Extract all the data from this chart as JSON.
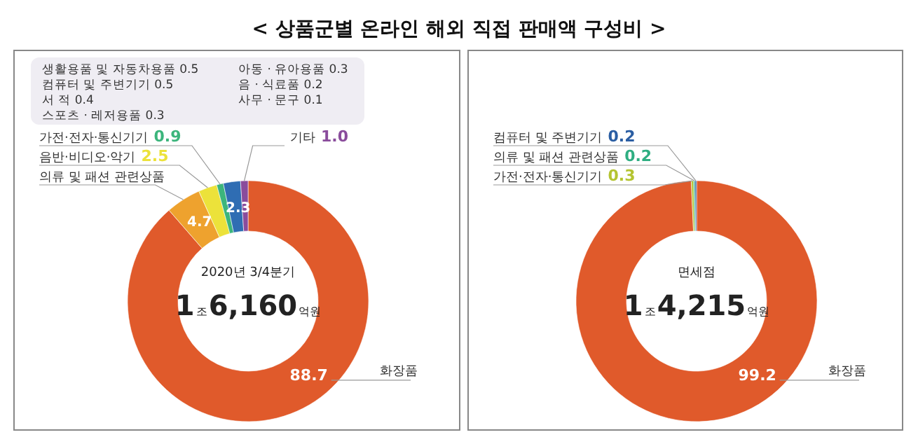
{
  "chart_data": [
    {
      "type": "donut",
      "title": "< 상품군별 온라인 해외 직접 판매액 구성비 >",
      "subtitle": "2020년 3/4분기",
      "categories": [
        "화장품",
        "의류 및 패션 관련상품",
        "음반·비디오·악기",
        "가전·전자·통신기기",
        null,
        "기타"
      ],
      "values": [
        88.7,
        4.7,
        2.5,
        0.9,
        2.3,
        1.0
      ],
      "colors": [
        "#e05a2b",
        "#eea22e",
        "#ece23a",
        "#3cb57c",
        "#2f6db3",
        "#8a4c9c"
      ],
      "value_labels": [
        "88.7",
        "4.7",
        "2.5",
        "0.9",
        "2.3",
        "1.0"
      ],
      "annotations": [
        "1조6,160억원",
        "생활용품 및 자동차용품 0.5",
        "컴퓨터 및 주변기기 0.5",
        "서 적 0.4",
        "스포츠 · 레저용품 0.3",
        "아동 · 유아용품 0.3",
        "음 · 식료품 0.2",
        "사무 · 문구 0.1"
      ]
    },
    {
      "type": "donut",
      "subtitle": "면세점",
      "categories": [
        "화장품",
        "가전·전자·통신기기",
        "의류 및 패션 관련상품",
        "컴퓨터 및 주변기기"
      ],
      "values": [
        99.2,
        0.3,
        0.2,
        0.2
      ],
      "colors": [
        "#e05a2b",
        "#b4c431",
        "#2fae82",
        "#2b5ea3"
      ],
      "data_labels": true,
      "annotations": [
        "1조4,215억원"
      ]
    }
  ]
}
